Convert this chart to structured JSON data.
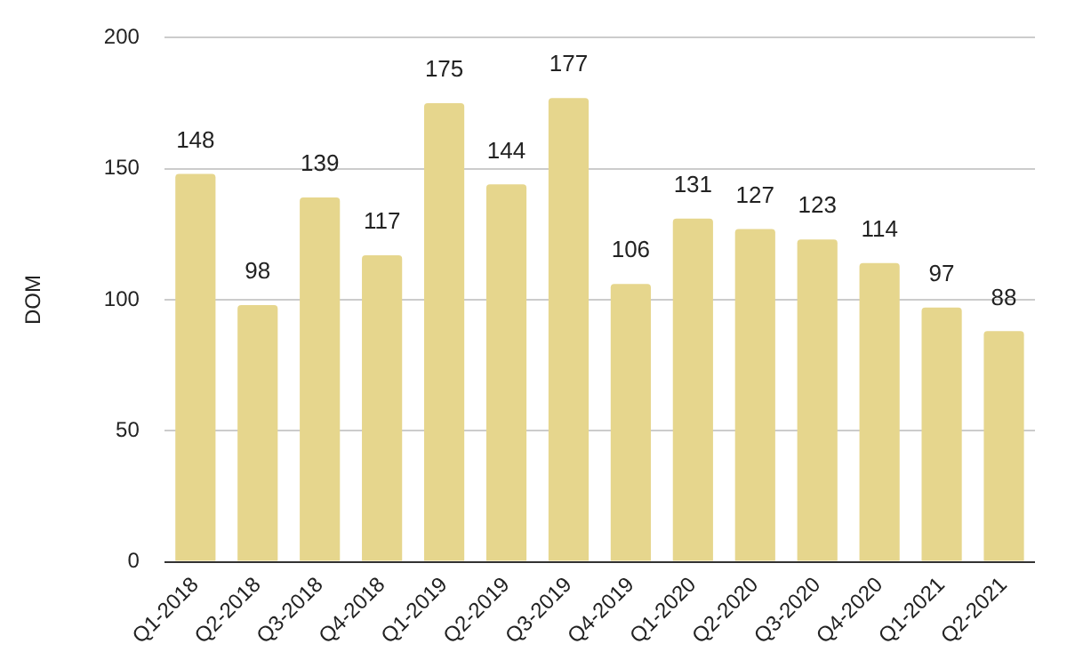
{
  "chart_data": {
    "type": "bar",
    "ylabel": "DOM",
    "categories": [
      "Q1-2018",
      "Q2-2018",
      "Q3-2018",
      "Q4-2018",
      "Q1-2019",
      "Q2-2019",
      "Q3-2019",
      "Q4-2019",
      "Q1-2020",
      "Q2-2020",
      "Q3-2020",
      "Q4-2020",
      "Q1-2021",
      "Q2-2021"
    ],
    "values": [
      148,
      98,
      139,
      117,
      175,
      144,
      177,
      106,
      131,
      127,
      123,
      114,
      97,
      88
    ],
    "color": "#e6d68d",
    "ylim": [
      0,
      200
    ],
    "yticks": [
      0,
      50,
      100,
      150,
      200
    ],
    "grid": "y",
    "data_labels": true,
    "legend": false
  }
}
